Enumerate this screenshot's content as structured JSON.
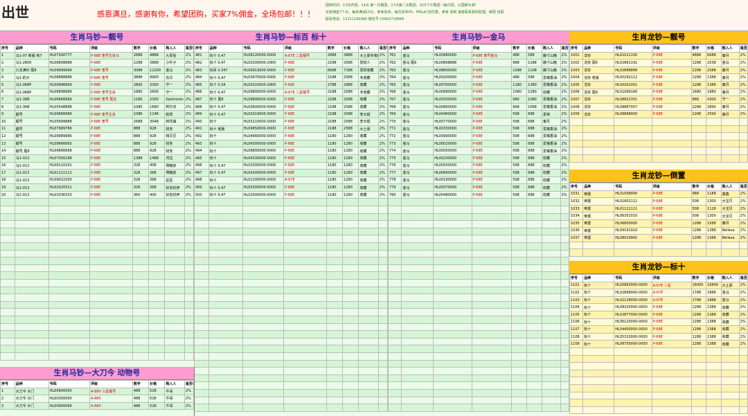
{
  "header": {
    "logo": "出世",
    "slogan": "感恩满旦，感谢有你，希望团购，买家7%佣金，全场包邮！！！",
    "notice1": "团购时间：13点开团，14点 第一次截团，17点第二次截团，次日下午截团（每日团，以国邮为准）",
    "notice2": "买家佣金7个点，每单满减10元，卖家加单，每次加单P9，PMLAC双优惠，卖家 请到 或者联系我的助理，邮局 自取",
    "notice3": "联系电话：13151189966 微信号 15962718848"
  },
  "panels": [
    {
      "title": "生肖马钞—靓号",
      "columns": [
        "序号",
        "品种",
        "号码",
        "评级",
        "数字",
        "价格",
        "购入人",
        "是否已售"
      ],
      "rows": [
        [
          "1",
          "马1-07 新版 热7",
          "HL07300777",
          "P-68E 宽号生肖马",
          "2888",
          "4888",
          "九零后",
          "2%"
        ],
        [
          "2",
          "马1-2800",
          "HL06808888",
          "P-68E",
          "2288",
          "3888",
          "小叶子",
          "2%"
        ],
        [
          "3",
          "九龙满印 尾8",
          "HL09999999",
          "P-68E 宽号",
          "3088",
          "12200",
          "金马",
          "2%"
        ],
        [
          "4",
          "马1-豹子",
          "HL08888888",
          "P-68E 宽号",
          "3888",
          "9900",
          "东华",
          "2%"
        ],
        [
          "5",
          "马1-068P",
          "HL09996669",
          "P-68E",
          "2800",
          "3300",
          "守一",
          "2%"
        ],
        [
          "6",
          "马1-068P",
          "HL08898989",
          "P-68E 宽号生肖",
          "1880",
          "2600",
          "守一",
          "2%"
        ],
        [
          "7",
          "马1-36B",
          "HL06666666",
          "P-68E 宽号 尾全",
          "1180",
          "2300",
          "Optimistic",
          "2%"
        ],
        [
          "8",
          "马1-36B",
          "HL05548888",
          "P-68E",
          "1080",
          "1680",
          "阿尔法",
          "2%"
        ],
        [
          "9",
          "靓号",
          "HL09666689",
          "P-68E 宽号生肖",
          "1086",
          "1148",
          "稻草",
          "2%"
        ],
        [
          "10",
          "靓号",
          "HL05699888",
          "P-68E 宽号",
          "2688",
          "3048",
          "鲜花铺",
          "2%"
        ],
        [
          "11",
          "靓号",
          "HL07989766",
          "P-68E",
          "888",
          "928",
          "财务",
          "2%"
        ],
        [
          "12",
          "靓号",
          "HL09989966",
          "P-68E",
          "888",
          "928",
          "得贝贝",
          "2%"
        ],
        [
          "13",
          "靓号",
          "HL09666665",
          "P-68E",
          "888",
          "928",
          "财务",
          "2%"
        ],
        [
          "14",
          "靓号 尾8",
          "HL09666668",
          "P-68E",
          "888",
          "928",
          "财务",
          "2%"
        ],
        [
          "15",
          "马1-013",
          "HL07000188",
          "P-68E",
          "1388",
          "1488",
          "鸿宝",
          "2%"
        ],
        [
          "16",
          "马1-013",
          "HL09110191",
          "P-68E",
          "328",
          "408",
          "明曦泉",
          "2%"
        ],
        [
          "17",
          "马1-013",
          "HL01111111",
          "P-68E",
          "328",
          "368",
          "明曦泉",
          "2%"
        ],
        [
          "18",
          "马1-013",
          "HL09022200",
          "P-68E",
          "328",
          "368",
          "星星",
          "2%"
        ],
        [
          "19",
          "马1-013",
          "HL02020311",
          "P-68E",
          "328",
          "368",
          "好友纪伊",
          "2%"
        ],
        [
          "20",
          "马1-013",
          "HL03336333",
          "P-68E",
          "360",
          "400",
          "好友纪伊",
          "2%"
        ]
      ]
    },
    {
      "title": "生肖马钞—标百 标十",
      "columns": [
        "序号",
        "品种",
        "号码",
        "评级",
        "数字",
        "价格",
        "购入人",
        "是否已售"
      ],
      "rows": [
        [
          "481",
          "标十 0,47",
          "HL08120000-0000",
          "A-67E 二星靓号",
          "2888",
          "3888",
          "大土豪专收藏",
          "2%"
        ],
        [
          "482",
          "标十 0,47",
          "HL03200000-2900",
          "P-68E",
          "2188",
          "2588",
          "发财人",
          "2%"
        ],
        [
          "483",
          "标百 0,347",
          "HL00913000-0000",
          "P-68E",
          "6688",
          "7188",
          "发财收藏",
          "2%"
        ],
        [
          "484",
          "标十 0,47",
          "HL03670000-0000",
          "P-68E",
          "2188",
          "2588",
          "专收藏",
          "2%"
        ],
        [
          "485",
          "标十 0,34",
          "HL00210000-2900",
          "P-68E",
          "2788",
          "2988",
          "收藏",
          "2%"
        ],
        [
          "486",
          "标十 0,47",
          "HL09800000-0000",
          "A-67E 二星靓号",
          "2188",
          "2588",
          "专收藏",
          "2%"
        ],
        [
          "487",
          "标十 尾8",
          "HL09890000-0000",
          "P-68E",
          "2188",
          "2588",
          "收藏",
          "2%"
        ],
        [
          "488",
          "标十 0,47",
          "HL00600000-0000",
          "P-68E",
          "2188",
          "2588",
          "收藏",
          "2%"
        ],
        [
          "489",
          "标十 0,47",
          "HL02019000-0000",
          "P-68E",
          "2188",
          "2588",
          "李大斌",
          "2%"
        ],
        [
          "490",
          "标十",
          "HL03110000-0000",
          "P-68E",
          "2188",
          "2588",
          "李大斌",
          "2%"
        ],
        [
          "491",
          "标十 老版",
          "HL09650000-0000",
          "P-68E",
          "2188",
          "2588",
          "大土豪",
          "2%"
        ],
        [
          "492",
          "标十",
          "HL04660000-0000",
          "P-68E",
          "1180",
          "1280",
          "收藏",
          "2%"
        ],
        [
          "493",
          "标十",
          "HL04300000-0000",
          "P-68E",
          "1180",
          "1280",
          "收藏",
          "2%"
        ],
        [
          "494",
          "标十",
          "HL08800000-0000",
          "P-68E",
          "1180",
          "1280",
          "收藏",
          "2%"
        ],
        [
          "495",
          "标十",
          "HL04330000-0000",
          "P-68E",
          "1180",
          "1280",
          "收藏",
          "2%"
        ],
        [
          "496",
          "标十 0,47",
          "HL03300000-0000",
          "P-68E",
          "1180",
          "1280",
          "收藏",
          "2%"
        ],
        [
          "497",
          "标十 0,47",
          "HL04200000-0000",
          "P-68E",
          "1180",
          "1280",
          "收藏",
          "2%"
        ],
        [
          "498",
          "标十",
          "HL01200000-0000",
          "A-67E",
          "1180",
          "1280",
          "收藏",
          "2%"
        ],
        [
          "499",
          "标十 0,47",
          "HL05300000-0000",
          "P-68E",
          "1180",
          "1280",
          "收藏",
          "2%"
        ],
        [
          "500",
          "标十 0,47",
          "HL02000000-0000",
          "P-68E",
          "1180",
          "1280",
          "收藏",
          "2%"
        ]
      ]
    },
    {
      "title": "生肖马钞—金马",
      "columns": [
        "序号",
        "品种",
        "号码",
        "评级",
        "数字",
        "价格",
        "购入人",
        "是否已售"
      ],
      "rows": [
        [
          "761",
          "金马",
          "HL00880000",
          "P-68E 宽号金马",
          "488",
          "588",
          "静寸山晚",
          "2%"
        ],
        [
          "762",
          "金马 尾8",
          "HL00868888",
          "P-68E",
          "988",
          "1188",
          "静寸山晚",
          "2%"
        ],
        [
          "763",
          "金马",
          "HL08600000",
          "P-68E",
          "1098",
          "1108",
          "静寸山晚",
          "2%"
        ],
        [
          "764",
          "金马",
          "HL00200000",
          "P-68E",
          "488",
          "588",
          "爱嘴香油",
          "2%"
        ],
        [
          "765",
          "金马",
          "HL00700000",
          "P-68E",
          "1180",
          "1380",
          "爱嘴香油",
          "2%"
        ],
        [
          "766",
          "金马",
          "HL00680000",
          "P-68E",
          "1080",
          "1280",
          "收藏",
          "2%"
        ],
        [
          "767",
          "金马",
          "HL00300000",
          "P-68E",
          "980",
          "1080",
          "爱嘴香油",
          "2%"
        ],
        [
          "768",
          "金马",
          "HL00860000",
          "P-68E",
          "998",
          "1068",
          "爱嘴香油",
          "2%"
        ],
        [
          "769",
          "金马",
          "HL00460000",
          "P-68E",
          "598",
          "688",
          "素锦",
          "2%"
        ],
        [
          "770",
          "金马",
          "HL00770000",
          "P-68E",
          "598",
          "688",
          "秦月",
          "2%"
        ],
        [
          "771",
          "金马",
          "HL00330000",
          "P-68E",
          "598",
          "688",
          "爱嘴香油",
          "2%"
        ],
        [
          "772",
          "金马",
          "HL00990000",
          "P-68E",
          "598",
          "688",
          "爱嘴香油",
          "2%"
        ],
        [
          "773",
          "金马",
          "HL00020000",
          "P-68E",
          "598",
          "688",
          "爱嘴香油",
          "2%"
        ],
        [
          "774",
          "金马",
          "HL00050000",
          "P-68E",
          "598",
          "688",
          "爱嘴香油",
          "2%"
        ],
        [
          "775",
          "金马",
          "HL00230000",
          "P-68E",
          "598",
          "688",
          "收藏",
          "2%"
        ],
        [
          "776",
          "金马",
          "HL00550000",
          "P-68E",
          "598",
          "688",
          "收藏",
          "2%"
        ],
        [
          "777",
          "金马",
          "HL00660000",
          "P-68E",
          "598",
          "688",
          "收藏",
          "2%"
        ],
        [
          "778",
          "金马",
          "HL00190000",
          "P-68E",
          "598",
          "688",
          "收藏",
          "2%"
        ],
        [
          "779",
          "金马",
          "HL00370000",
          "P-68E",
          "598",
          "688",
          "收藏",
          "2%"
        ],
        [
          "780",
          "金马",
          "HL00480000",
          "P-68E",
          "598",
          "688",
          "收藏",
          "2%"
        ]
      ]
    },
    {
      "title": "生肖龙钞—靓号",
      "columns": [
        "序号",
        "品种",
        "号码",
        "评级",
        "数字",
        "价格",
        "购入人",
        "是否已售"
      ],
      "rows": [
        [
          "1001",
          "龙钞",
          "HL01021100",
          "P-68E",
          "4888",
          "6688",
          "秦月",
          "2%"
        ],
        [
          "1002",
          "龙钞 尾8",
          "HL02881191",
          "P-68E",
          "1288",
          "2538",
          "金马",
          "2%"
        ],
        [
          "1003",
          "龙钞",
          "HL02888888",
          "P-68E",
          "2288",
          "2588",
          "秦月",
          "2%"
        ],
        [
          "1004",
          "龙钞 老版",
          "HL00292112",
          "P-68E",
          "1288",
          "1388",
          "秦月",
          "2%"
        ],
        [
          "1005",
          "龙钞",
          "HL00201001",
          "P-68E",
          "1288",
          "1388",
          "秦月",
          "2%"
        ],
        [
          "1006",
          "龙钞 尾8",
          "HL01089166",
          "P-68E",
          "1680",
          "1880",
          "秦月",
          "2%"
        ],
        [
          "1007",
          "龙钞",
          "HL08822301",
          "P-68E",
          "888",
          "4300",
          "守一",
          "2%"
        ],
        [
          "1008",
          "龙钞",
          "HL08887007",
          "P-68E",
          "2288",
          "2890",
          "秦月",
          "2%"
        ],
        [
          "1009",
          "龙钞",
          "HL08868000",
          "P-68E",
          "2288",
          "2590",
          "秦月",
          "2%"
        ]
      ]
    },
    {
      "title": "生肖龙钞—倒置",
      "columns": [
        "序号",
        "品种",
        "号码",
        "评级",
        "数字",
        "价格",
        "购入人",
        "是否已售"
      ],
      "rows": [
        [
          "1031",
          "倒置",
          "HL01008000",
          "P-68E",
          "988",
          "1188",
          "鑫鑫",
          "2%"
        ],
        [
          "1032",
          "倒置",
          "HL01801111",
          "P-68E",
          "508",
          "1300",
          "大宝贝",
          "2%"
        ],
        [
          "1033",
          "倒置",
          "HL01121111",
          "P-68E",
          "508",
          "1128",
          "大宝贝",
          "2%"
        ],
        [
          "1034",
          "倒置",
          "HL06301010",
          "P-68E",
          "508",
          "1300",
          "大宝贝",
          "2%"
        ],
        [
          "1035",
          "倒置",
          "HL06800000",
          "P-68E",
          "1288",
          "1588",
          "秦月",
          "2%"
        ],
        [
          "1036",
          "倒置",
          "HL09191919",
          "P-68E",
          "1288",
          "1388",
          "Belleza",
          "2%"
        ],
        [
          "1037",
          "倒置",
          "HL08019991",
          "P-68E",
          "1288",
          "1388",
          "Belleza",
          "2%"
        ]
      ]
    },
    {
      "title": "生肖龙钞—标十",
      "columns": [
        "序号",
        "品种",
        "号码",
        "评级",
        "数字",
        "价格",
        "购入人",
        "是否已售"
      ],
      "rows": [
        [
          "1101",
          "标十",
          "HL00883000-0000",
          "A-67E 二星",
          "16000",
          "16800",
          "大土豪",
          "2%"
        ],
        [
          "1102",
          "标十",
          "HL02868000-0000",
          "A-67E",
          "1788",
          "1888",
          "金马",
          "2%"
        ],
        [
          "1103",
          "标十",
          "HL02128000-0000",
          "A-67E",
          "1788",
          "1888",
          "金马",
          "2%"
        ],
        [
          "1104",
          "标十",
          "HL08320000-0000",
          "P-68E",
          "1288",
          "1388",
          "收藏",
          "2%"
        ],
        [
          "1105",
          "标十",
          "HL02877000-0000",
          "P-68E",
          "1288",
          "1388",
          "收藏",
          "2%"
        ],
        [
          "1106",
          "标十",
          "HL06120000-0000",
          "P-68E",
          "1288",
          "1388",
          "收藏",
          "2%"
        ],
        [
          "1107",
          "标十",
          "HL04400000-0000",
          "P-68E",
          "1288",
          "1388",
          "收藏",
          "2%"
        ],
        [
          "1108",
          "标十",
          "HL05310000-0000",
          "P-68E",
          "1288",
          "1388",
          "收藏",
          "2%"
        ],
        [
          "1109",
          "标十",
          "HL08750000-0000",
          "P-68E",
          "1288",
          "1388",
          "收藏",
          "2%"
        ]
      ]
    },
    {
      "title": "生肖马钞—大刀今 动物号",
      "columns": [
        "序号",
        "品种",
        "号码",
        "评级",
        "数字",
        "价格",
        "购入人",
        "是否已售"
      ],
      "rows": [
        [
          "1",
          "大刀今 大门",
          "HL00900000",
          "A-680 三星靓号",
          "488",
          "528",
          "牛哥",
          "2%"
        ],
        [
          "2",
          "大刀今 大门",
          "HL00300000",
          "A-680",
          "488",
          "528",
          "牛哥",
          "2%"
        ],
        [
          "3",
          "大刀今 大门",
          "HL00900066",
          "A-680",
          "488",
          "528",
          "牛哥",
          "2%"
        ]
      ]
    }
  ]
}
